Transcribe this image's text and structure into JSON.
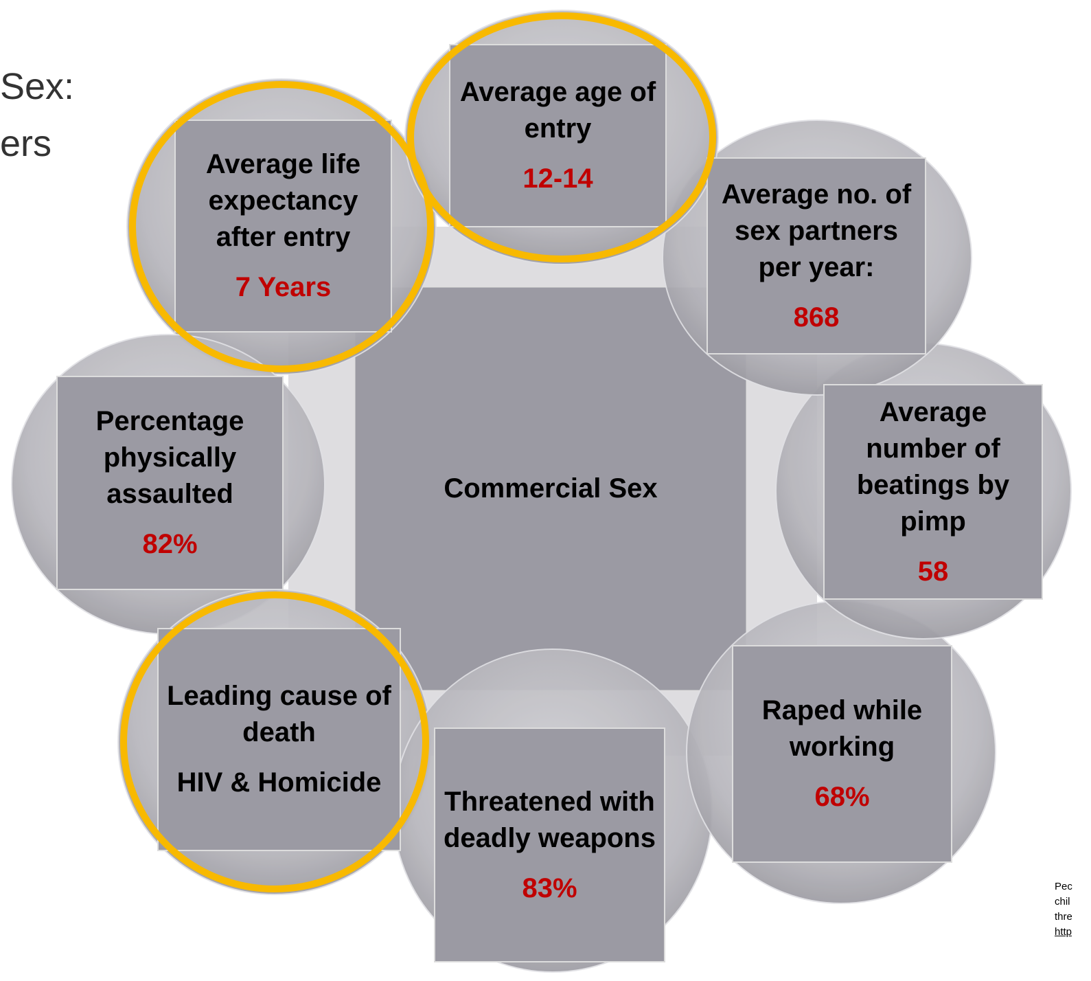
{
  "title_lines": [
    "Sex:",
    "ers"
  ],
  "center": {
    "label": "Commercial Sex"
  },
  "nodes": [
    {
      "label": "Average age of entry",
      "value": "12-14"
    },
    {
      "label": "Average no. of sex partners per year:",
      "value": "868"
    },
    {
      "label": "Average number of beatings by pimp",
      "value": "58"
    },
    {
      "label": "Raped while working",
      "value": "68%"
    },
    {
      "label": "Threatened with deadly weapons",
      "value": "83%"
    },
    {
      "label": "Leading cause of death",
      "value": "HIV  & Homicide"
    },
    {
      "label": "Percentage physically assaulted",
      "value": "82%"
    },
    {
      "label": "Average life expectancy after entry",
      "value": "7 Years"
    }
  ],
  "footnote_lines": [
    "Pec",
    "chil",
    "thre",
    "http"
  ]
}
